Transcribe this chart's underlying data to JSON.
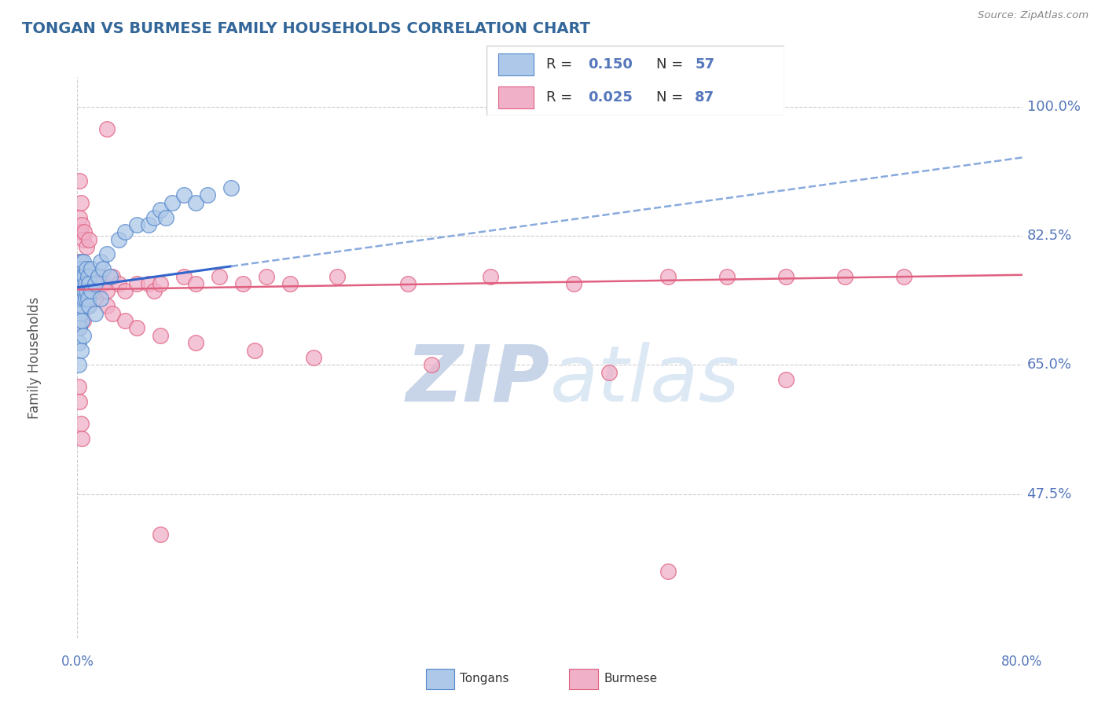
{
  "title": "TONGAN VS BURMESE FAMILY HOUSEHOLDS CORRELATION CHART",
  "source": "Source: ZipAtlas.com",
  "ylabel": "Family Households",
  "y_ticks": [
    0.475,
    0.65,
    0.825,
    1.0
  ],
  "y_tick_labels": [
    "47.5%",
    "65.0%",
    "82.5%",
    "100.0%"
  ],
  "x_range": [
    0.0,
    0.8
  ],
  "y_range": [
    0.28,
    1.04
  ],
  "tongan_color": "#adc8e8",
  "tongan_edge_color": "#5588cc",
  "burmese_color": "#f0b0c8",
  "burmese_edge_color": "#e06080",
  "trend_tongan_color": "#3366cc",
  "trend_tongan_dash_color": "#88aadd",
  "trend_burmese_color": "#e06080",
  "watermark_zip": "ZIP",
  "watermark_atlas": "atlas",
  "watermark_color": "#c8d4e8",
  "grid_color": "#cccccc",
  "axis_label_color": "#5577bb",
  "title_color": "#336699",
  "right_axis_color": "#5577bb",
  "legend_R1": "0.150",
  "legend_N1": "57",
  "legend_R2": "0.025",
  "legend_N2": "87",
  "tongan_x": [
    0.001,
    0.001,
    0.001,
    0.001,
    0.002,
    0.002,
    0.002,
    0.002,
    0.003,
    0.003,
    0.003,
    0.003,
    0.003,
    0.004,
    0.004,
    0.004,
    0.005,
    0.005,
    0.005,
    0.006,
    0.006,
    0.007,
    0.007,
    0.008,
    0.008,
    0.009,
    0.009,
    0.01,
    0.01,
    0.012,
    0.012,
    0.015,
    0.018,
    0.02,
    0.022,
    0.025,
    0.028,
    0.035,
    0.04,
    0.05,
    0.06,
    0.065,
    0.07,
    0.075,
    0.08,
    0.09,
    0.1,
    0.11,
    0.13,
    0.001,
    0.001,
    0.002,
    0.003,
    0.004,
    0.005,
    0.015,
    0.02
  ],
  "tongan_y": [
    0.76,
    0.78,
    0.73,
    0.71,
    0.75,
    0.77,
    0.74,
    0.72,
    0.79,
    0.76,
    0.74,
    0.72,
    0.78,
    0.75,
    0.77,
    0.73,
    0.76,
    0.74,
    0.79,
    0.77,
    0.75,
    0.76,
    0.74,
    0.78,
    0.75,
    0.77,
    0.74,
    0.76,
    0.73,
    0.75,
    0.78,
    0.76,
    0.77,
    0.79,
    0.78,
    0.8,
    0.77,
    0.82,
    0.83,
    0.84,
    0.84,
    0.85,
    0.86,
    0.85,
    0.87,
    0.88,
    0.87,
    0.88,
    0.89,
    0.68,
    0.65,
    0.7,
    0.67,
    0.71,
    0.69,
    0.72,
    0.74
  ],
  "burmese_x": [
    0.001,
    0.001,
    0.001,
    0.001,
    0.001,
    0.002,
    0.002,
    0.002,
    0.002,
    0.003,
    0.003,
    0.003,
    0.003,
    0.004,
    0.004,
    0.004,
    0.005,
    0.005,
    0.005,
    0.006,
    0.006,
    0.007,
    0.007,
    0.008,
    0.008,
    0.009,
    0.009,
    0.01,
    0.01,
    0.011,
    0.012,
    0.013,
    0.015,
    0.016,
    0.018,
    0.02,
    0.022,
    0.025,
    0.03,
    0.035,
    0.04,
    0.05,
    0.06,
    0.065,
    0.07,
    0.09,
    0.1,
    0.12,
    0.14,
    0.16,
    0.18,
    0.22,
    0.28,
    0.35,
    0.42,
    0.5,
    0.55,
    0.6,
    0.65,
    0.7,
    0.002,
    0.003,
    0.004,
    0.005,
    0.006,
    0.008,
    0.01,
    0.002,
    0.003,
    0.025,
    0.03,
    0.04,
    0.05,
    0.07,
    0.1,
    0.15,
    0.2,
    0.3,
    0.45,
    0.6,
    0.001,
    0.002,
    0.003,
    0.004,
    0.025,
    0.07,
    0.5
  ],
  "burmese_y": [
    0.76,
    0.74,
    0.72,
    0.79,
    0.71,
    0.77,
    0.75,
    0.73,
    0.7,
    0.78,
    0.76,
    0.74,
    0.72,
    0.75,
    0.77,
    0.73,
    0.76,
    0.74,
    0.71,
    0.77,
    0.75,
    0.76,
    0.74,
    0.78,
    0.75,
    0.77,
    0.73,
    0.76,
    0.74,
    0.77,
    0.75,
    0.76,
    0.74,
    0.75,
    0.76,
    0.77,
    0.76,
    0.75,
    0.77,
    0.76,
    0.75,
    0.76,
    0.76,
    0.75,
    0.76,
    0.77,
    0.76,
    0.77,
    0.76,
    0.77,
    0.76,
    0.77,
    0.76,
    0.77,
    0.76,
    0.77,
    0.77,
    0.77,
    0.77,
    0.77,
    0.85,
    0.83,
    0.84,
    0.82,
    0.83,
    0.81,
    0.82,
    0.9,
    0.87,
    0.73,
    0.72,
    0.71,
    0.7,
    0.69,
    0.68,
    0.67,
    0.66,
    0.65,
    0.64,
    0.63,
    0.62,
    0.6,
    0.57,
    0.55,
    0.97,
    0.42,
    0.37
  ]
}
